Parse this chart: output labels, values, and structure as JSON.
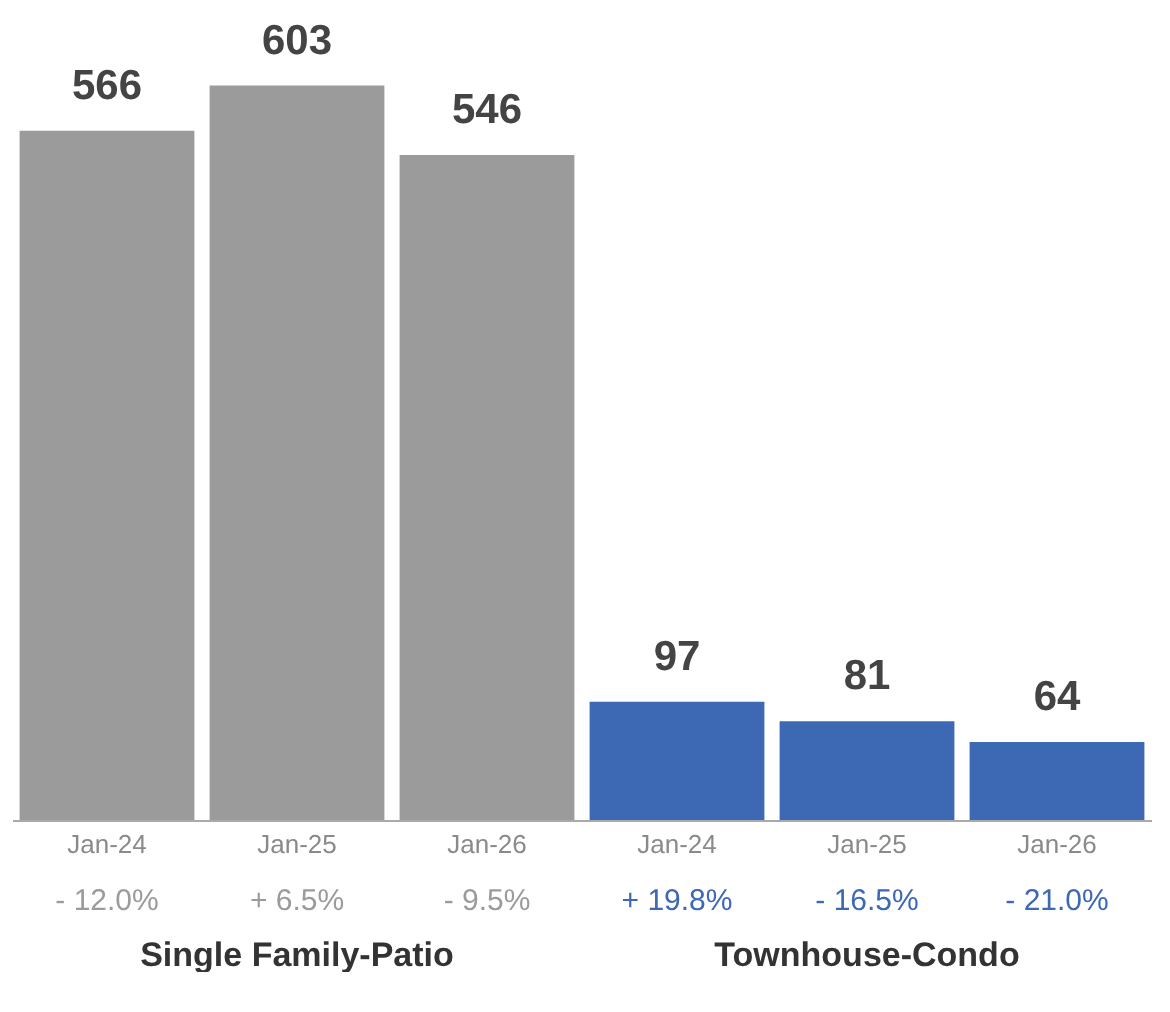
{
  "chart_data": [
    {
      "type": "bar",
      "xlabel": "Single Family-Patio",
      "categories": [
        "Jan-24",
        "Jan-25",
        "Jan-26"
      ],
      "values": [
        566,
        603,
        546
      ],
      "color": "#9b9b9b",
      "data_labels": true,
      "ylim": [
        0,
        670
      ],
      "tick_labels": "x",
      "annotations": [
        "- 12.0%",
        "+ 6.5%",
        "- 9.5%"
      ]
    },
    {
      "type": "bar",
      "xlabel": "Townhouse-Condo",
      "categories": [
        "Jan-24",
        "Jan-25",
        "Jan-26"
      ],
      "values": [
        97,
        81,
        64
      ],
      "color": "#3d68b3",
      "data_labels": true,
      "ylim": [
        0,
        670
      ],
      "tick_labels": "x",
      "annotations": [
        "+ 19.8%",
        "- 16.5%",
        "- 21.0%"
      ]
    }
  ]
}
